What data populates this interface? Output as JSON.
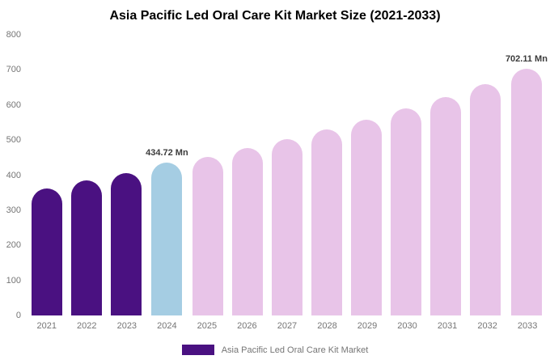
{
  "chart_data": {
    "type": "bar",
    "title": "Asia Pacific Led Oral Care Kit Market Size (2021-2033)",
    "categories": [
      "2021",
      "2022",
      "2023",
      "2024",
      "2025",
      "2026",
      "2027",
      "2028",
      "2029",
      "2030",
      "2031",
      "2032",
      "2033"
    ],
    "values": [
      362,
      384,
      406,
      434.72,
      453,
      477,
      503,
      530,
      558,
      590,
      622,
      660,
      702.11
    ],
    "unit": "Mn",
    "xlabel": "",
    "ylabel": "",
    "ylim": [
      0,
      800
    ],
    "ytick_step": 100,
    "grid": false,
    "legend_position": "bottom",
    "bar_roles": [
      "historical",
      "historical",
      "historical",
      "current",
      "forecast",
      "forecast",
      "forecast",
      "forecast",
      "forecast",
      "forecast",
      "forecast",
      "forecast",
      "forecast"
    ],
    "annotations": [
      {
        "category": "2024",
        "label": "434.72 Mn"
      },
      {
        "category": "2033",
        "label": "702.11 Mn"
      }
    ]
  },
  "colors": {
    "historical": "#4a1181",
    "current": "#a5cde3",
    "forecast": "#e8c4e8",
    "axis_text": "#757575",
    "annotation_text": "#3b3b3b"
  },
  "legend": {
    "label": "Asia Pacific Led Oral Care Kit Market",
    "swatch_color": "#4a1181"
  }
}
